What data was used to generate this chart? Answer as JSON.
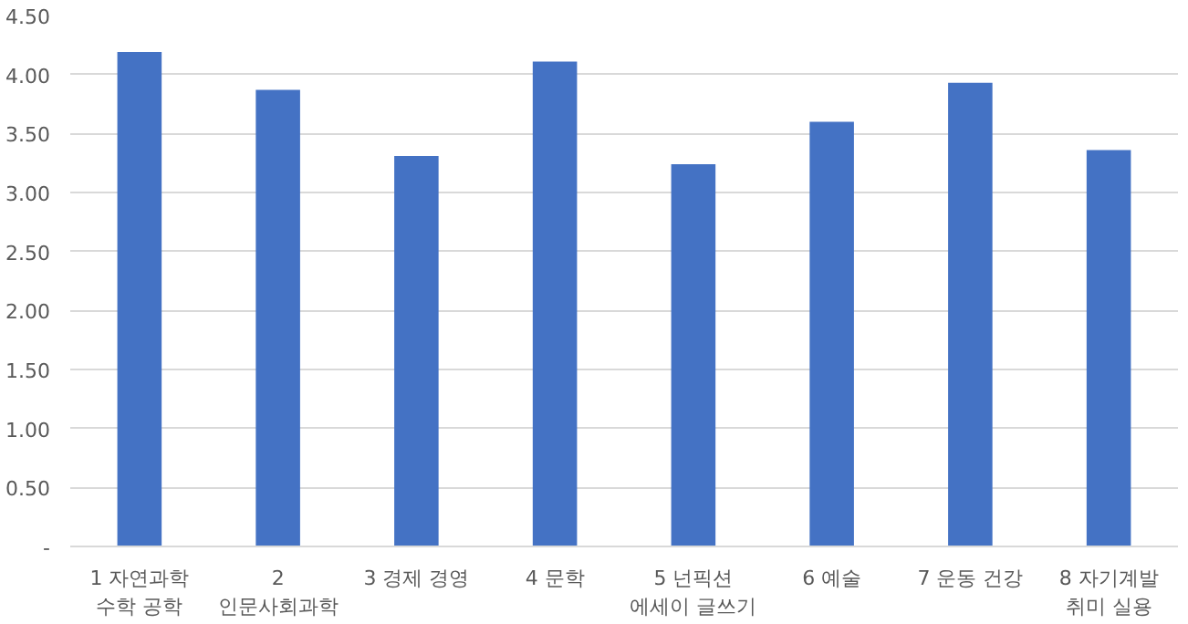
{
  "chart_data": {
    "type": "bar",
    "categories": [
      "1 자연과학\n수학 공학",
      "2\n인문사회과학",
      "3 경제 경영",
      "4 문학",
      "5 넌픽션\n에세이 글쓰기",
      "6 예술",
      "7 운동 건강",
      "8 자기계발\n취미 실용"
    ],
    "values": [
      4.19,
      3.87,
      3.31,
      4.11,
      3.24,
      3.6,
      3.93,
      3.36
    ],
    "color": "#4472c4",
    "ylim": [
      0,
      4.5
    ],
    "yticks": [
      {
        "value": 0,
        "label": "-"
      },
      {
        "value": 0.5,
        "label": "0.50"
      },
      {
        "value": 1,
        "label": "1.00"
      },
      {
        "value": 1.5,
        "label": "1.50"
      },
      {
        "value": 2,
        "label": "2.00"
      },
      {
        "value": 2.5,
        "label": "2.50"
      },
      {
        "value": 3,
        "label": "3.00"
      },
      {
        "value": 3.5,
        "label": "3.50"
      },
      {
        "value": 4,
        "label": "4.00"
      },
      {
        "value": 4.5,
        "label": "4.50"
      }
    ],
    "grid": "y"
  }
}
